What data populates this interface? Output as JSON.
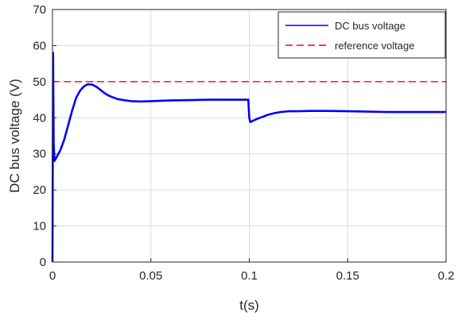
{
  "chart_data": {
    "type": "line",
    "xlabel": "t(s)",
    "ylabel": "DC bus voltage (V)",
    "xlim": [
      0,
      0.2
    ],
    "ylim": [
      0,
      70
    ],
    "xticks": [
      0,
      0.05,
      0.1,
      0.15,
      0.2
    ],
    "xtick_labels": [
      "0",
      "0.05",
      "0.1",
      "0.15",
      "0.2"
    ],
    "yticks": [
      0,
      10,
      20,
      30,
      40,
      50,
      60,
      70
    ],
    "ytick_labels": [
      "0",
      "10",
      "20",
      "30",
      "40",
      "50",
      "60",
      "70"
    ],
    "grid": true,
    "legend_position": "top-right",
    "series": [
      {
        "name": "DC bus voltage",
        "color": "#0000ff",
        "style": "solid",
        "x": [
          0,
          0.0003,
          0.0006,
          0.001,
          0.002,
          0.004,
          0.006,
          0.008,
          0.01,
          0.012,
          0.014,
          0.016,
          0.018,
          0.02,
          0.022,
          0.024,
          0.026,
          0.028,
          0.03,
          0.033,
          0.036,
          0.04,
          0.045,
          0.05,
          0.055,
          0.06,
          0.07,
          0.08,
          0.09,
          0.0995,
          0.1,
          0.1005,
          0.102,
          0.104,
          0.106,
          0.108,
          0.11,
          0.113,
          0.116,
          0.12,
          0.125,
          0.13,
          0.14,
          0.15,
          0.16,
          0.17,
          0.18,
          0.19,
          0.2
        ],
        "y": [
          0,
          58,
          33,
          28,
          29,
          31,
          34,
          38,
          42,
          45.5,
          47.5,
          48.7,
          49.3,
          49.2,
          48.7,
          47.9,
          47.0,
          46.3,
          45.8,
          45.2,
          44.9,
          44.6,
          44.5,
          44.6,
          44.7,
          44.8,
          44.9,
          45.0,
          45.0,
          45.0,
          40.0,
          38.8,
          39.2,
          39.7,
          40.1,
          40.5,
          40.9,
          41.3,
          41.6,
          41.8,
          41.8,
          41.9,
          41.9,
          41.8,
          41.7,
          41.6,
          41.6,
          41.6,
          41.6
        ]
      },
      {
        "name": "reference voltage",
        "color": "#ff0000",
        "style": "dashed",
        "x": [
          0,
          0.2
        ],
        "y": [
          50,
          50
        ]
      }
    ]
  }
}
